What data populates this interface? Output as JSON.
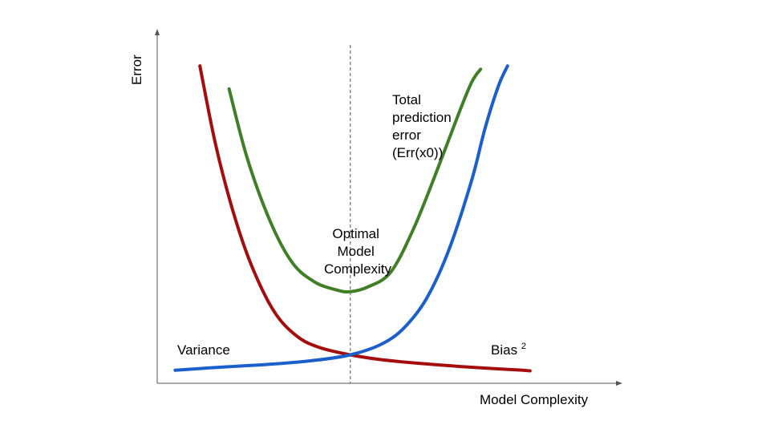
{
  "chart_data": {
    "type": "line",
    "title": "",
    "xlabel": "Model Complexity",
    "ylabel": "Error",
    "x_ticks": [],
    "y_ticks": [],
    "grid": false,
    "xlim": [
      0,
      10
    ],
    "ylim": [
      0,
      10
    ],
    "optimal_x": 4.3,
    "series": [
      {
        "name": "Variance",
        "color": "#a50d0d",
        "x": [
          0.95,
          1.3,
          1.7,
          2.1,
          2.6,
          3.1,
          3.6,
          4.3,
          5.0,
          6.0,
          7.0,
          8.0,
          8.3
        ],
        "y": [
          9.7,
          7.3,
          5.2,
          3.6,
          2.2,
          1.45,
          1.1,
          0.87,
          0.72,
          0.59,
          0.49,
          0.41,
          0.38
        ]
      },
      {
        "name": "Bias",
        "name_superscript": "2",
        "color": "#1a5fcc",
        "x": [
          0.4,
          1.5,
          2.5,
          3.5,
          4.3,
          5.0,
          5.5,
          6.0,
          6.5,
          7.0,
          7.3,
          7.6,
          7.8
        ],
        "y": [
          0.4,
          0.5,
          0.58,
          0.7,
          0.87,
          1.2,
          1.7,
          2.6,
          4.1,
          6.2,
          7.8,
          9.1,
          9.7
        ]
      },
      {
        "name": "Total prediction error (Err(x0))",
        "color": "#3f7f25",
        "x": [
          1.6,
          2.0,
          2.5,
          3.0,
          3.5,
          4.0,
          4.3,
          4.7,
          5.2,
          5.7,
          6.2,
          6.7,
          7.0,
          7.2
        ],
        "y": [
          9.0,
          6.9,
          5.0,
          3.7,
          3.1,
          2.85,
          2.8,
          2.95,
          3.4,
          4.7,
          6.4,
          8.2,
          9.2,
          9.6
        ]
      }
    ],
    "annotations": {
      "variance": "Variance",
      "bias": "Bias",
      "bias_sup": "2",
      "optimal": [
        "Optimal",
        "Model",
        "Complexity"
      ],
      "total": [
        "Total",
        "prediction",
        "error",
        "(Err(x0))"
      ]
    }
  }
}
